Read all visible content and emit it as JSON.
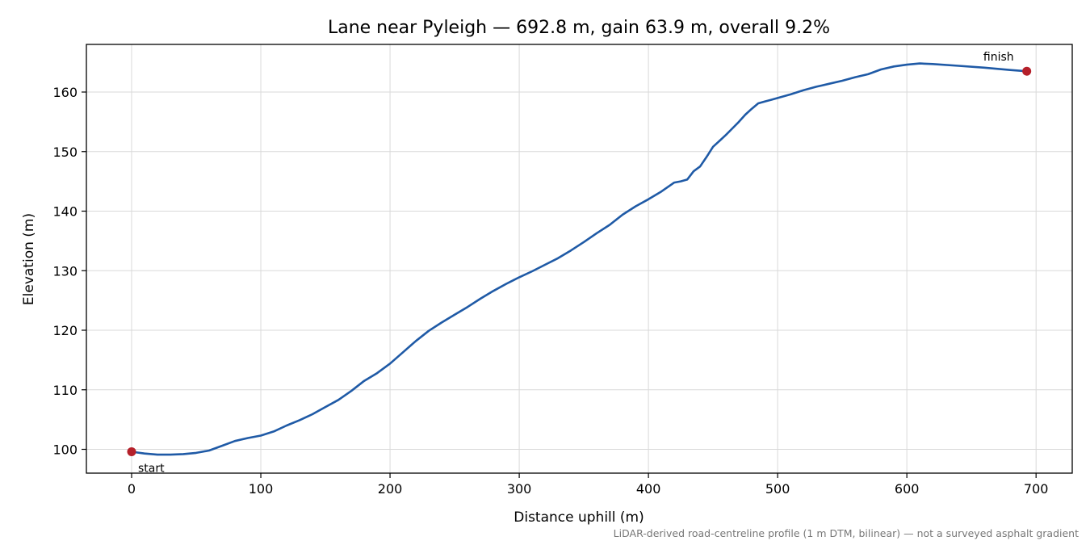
{
  "chart_data": {
    "type": "line",
    "title": "Lane near Pyleigh — 692.8 m, gain 63.9 m, overall 9.2%",
    "xlabel": "Distance uphill (m)",
    "ylabel": "Elevation (m)",
    "xlim": [
      -35,
      728
    ],
    "ylim": [
      96,
      168
    ],
    "xticks": [
      0,
      100,
      200,
      300,
      400,
      500,
      600,
      700
    ],
    "yticks": [
      100,
      110,
      120,
      130,
      140,
      150,
      160
    ],
    "grid": true,
    "series": [
      {
        "color": "#1f5aa6",
        "x": [
          0,
          10,
          20,
          30,
          40,
          50,
          60,
          70,
          80,
          90,
          100,
          110,
          120,
          130,
          140,
          150,
          160,
          170,
          180,
          190,
          200,
          210,
          220,
          230,
          240,
          250,
          260,
          270,
          280,
          290,
          300,
          310,
          320,
          330,
          340,
          350,
          360,
          370,
          380,
          390,
          400,
          410,
          420,
          425,
          430,
          435,
          440,
          445,
          450,
          455,
          460,
          465,
          470,
          475,
          480,
          485,
          490,
          495,
          500,
          510,
          520,
          530,
          540,
          550,
          560,
          570,
          580,
          590,
          600,
          610,
          620,
          640,
          660,
          680,
          692.8
        ],
        "y": [
          99.6,
          99.3,
          99.1,
          99.1,
          99.2,
          99.4,
          99.8,
          100.6,
          101.4,
          101.9,
          102.3,
          103.0,
          104.0,
          104.9,
          105.9,
          107.1,
          108.3,
          109.8,
          111.5,
          112.8,
          114.4,
          116.3,
          118.2,
          119.9,
          121.3,
          122.6,
          123.9,
          125.3,
          126.6,
          127.8,
          128.9,
          129.9,
          131.0,
          132.1,
          133.4,
          134.8,
          136.3,
          137.7,
          139.4,
          140.8,
          142.0,
          143.3,
          144.8,
          145.0,
          145.3,
          146.7,
          147.5,
          149.1,
          150.8,
          151.8,
          152.8,
          153.9,
          155.0,
          156.2,
          157.2,
          158.1,
          158.4,
          158.7,
          159.0,
          159.6,
          160.3,
          160.9,
          161.4,
          161.9,
          162.5,
          163.0,
          163.8,
          164.3,
          164.6,
          164.8,
          164.7,
          164.4,
          164.1,
          163.7,
          163.5
        ]
      }
    ],
    "endpoints": [
      {
        "label": "start",
        "x": 0,
        "y": 99.6
      },
      {
        "label": "finish",
        "x": 692.8,
        "y": 163.5
      }
    ],
    "marker_color": "#b5202a",
    "footnote": "LiDAR-derived road-centreline profile (1 m DTM, bilinear) — not a surveyed asphalt gradient"
  }
}
